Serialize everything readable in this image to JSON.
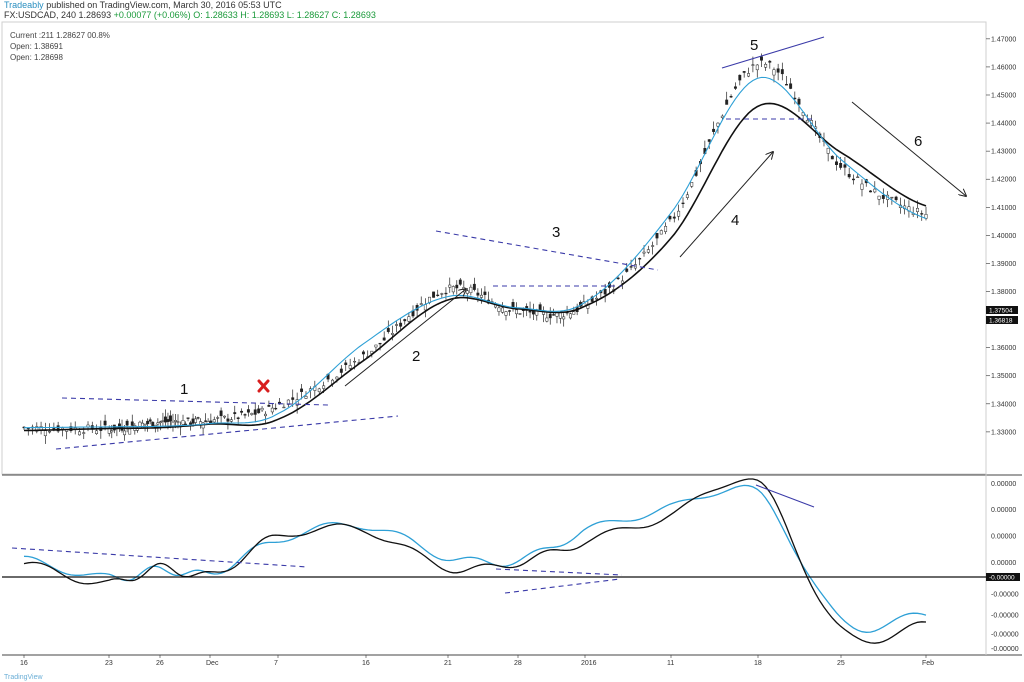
{
  "header": {
    "line1_prefix": "Tradeably",
    "line1_text": " published on TradingView.com, March 30, 2016 05:53 UTC",
    "line2_symbol": "FX:USDCAD, 240",
    "line2_price": "1.28693",
    "line2_change": "+0.00077 (+0.06%)",
    "line2_ohlc": "O: 1.28633 H: 1.28693 L: 1.28627 C: 1.28693"
  },
  "legend": {
    "current": "Current :211 1.28627 00.8%",
    "open1": "Open: 1.38691",
    "open2": "Open: 1.28698"
  },
  "footer": {
    "text": "TradingView"
  },
  "chart_data": [
    {
      "type": "line",
      "title": "FX:USDCAD, 240",
      "x": [
        "16",
        "23",
        "26",
        "Dec",
        "7",
        "16",
        "21",
        "28",
        "2016",
        "11",
        "18",
        "25",
        "Feb"
      ],
      "series": [
        {
          "values": [
            1.3315,
            1.3312,
            1.3335,
            1.3341,
            1.3395,
            1.3575,
            1.3808,
            1.373,
            1.3752,
            1.405,
            1.461,
            1.4245,
            1.4075
          ]
        },
        {
          "values": [
            1.3315,
            1.3318,
            1.332,
            1.333,
            1.3365,
            1.362,
            1.3782,
            1.3742,
            1.3762,
            1.408,
            1.456,
            1.427,
            1.406
          ]
        },
        {
          "values": [
            1.3305,
            1.3312,
            1.3315,
            1.3328,
            1.3345,
            1.356,
            1.377,
            1.3738,
            1.3748,
            1.399,
            1.446,
            1.4295,
            1.4105
          ]
        }
      ],
      "ylim": [
        1.315,
        1.476
      ],
      "yticks": [
        "1.47000",
        "1.46000",
        "1.45000",
        "1.44000",
        "1.43000",
        "1.42000",
        "1.41000",
        "1.40000",
        "1.39000",
        "1.38000",
        "1.37000",
        "1.36000",
        "1.35000",
        "1.34000",
        "1.33000"
      ],
      "price_labels": [
        "1.37504",
        "1.36818"
      ],
      "annotations": [
        "1",
        "2",
        "3",
        "4",
        "5",
        "6"
      ],
      "grid": false
    },
    {
      "type": "line",
      "x": [
        "16",
        "23",
        "26",
        "Dec",
        "7",
        "16",
        "21",
        "28",
        "2016",
        "11",
        "18",
        "25",
        "Feb"
      ],
      "series": [
        {
          "values": [
            0.0008,
            -0.001,
            0.0005,
            -0.0002,
            0.0035,
            0.004,
            0.0005,
            0.001,
            0.003,
            0.0055,
            0.0085,
            -0.0055,
            -0.005
          ]
        },
        {
          "values": [
            0.0012,
            -0.0005,
            0.0003,
            0.0,
            0.0032,
            0.0045,
            0.0015,
            0.0012,
            0.004,
            0.0062,
            0.0075,
            -0.0045,
            -0.004
          ]
        }
      ],
      "ylim": [
        -0.0078,
        0.0092
      ],
      "yticks": [
        "0.00000",
        "0.00000",
        "0.00000",
        "0.00000",
        "-0.00000",
        "-0.00000",
        "-0.00000",
        "-0.00000"
      ],
      "zero_label": "-0.00000",
      "grid": false
    }
  ],
  "colors": {
    "candle": "#222222",
    "ema_fast": "#2ea0d6",
    "ema_slow": "#111111",
    "trendline": "#3a3aa8",
    "marker": "#d81e1e",
    "axis": "#333333"
  }
}
